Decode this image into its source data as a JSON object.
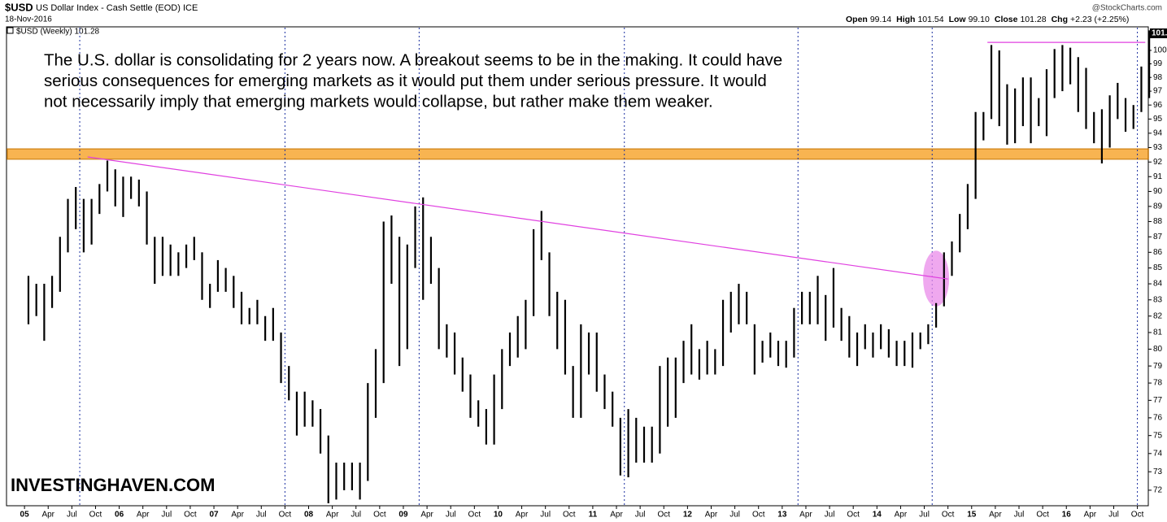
{
  "header": {
    "symbol": "$USD",
    "name": "US Dollar Index - Cash Settle (EOD) ICE",
    "date": "18-Nov-2016",
    "source": "@StockCharts.com",
    "quote": [
      {
        "label": "Open",
        "value": "99.14"
      },
      {
        "label": "High",
        "value": "101.54"
      },
      {
        "label": "Low",
        "value": "99.10"
      },
      {
        "label": "Close",
        "value": "101.28"
      },
      {
        "label": "Chg",
        "value": "+2.23 (+2.25%)"
      }
    ]
  },
  "chart_data": {
    "type": "hilo",
    "legend": "$USD (Weekly) 101.28",
    "last_price": 101.28,
    "color": "#000000",
    "annotation": [
      "The U.S. dollar is consolidating for 2 years now. A breakout seems to be in the making. It could have",
      "serious consequences for emerging markets as it would put them under serious pressure. It would",
      "not necessarily imply that emerging markets would collapse, but rather make them weaker."
    ],
    "watermark": "INVESTINGHAVEN.COM",
    "log": true,
    "xlim": [
      "2004-10",
      "2016-12"
    ],
    "ylim": [
      71.17,
      101.65
    ],
    "yticks": [
      72,
      73,
      74,
      75,
      76,
      77,
      78,
      79,
      80,
      81,
      82,
      83,
      84,
      85,
      86,
      87,
      88,
      89,
      90,
      91,
      92,
      93,
      94,
      95,
      96,
      97,
      98,
      99,
      100
    ],
    "xticks": [
      {
        "value": "2005-01",
        "label": "05"
      },
      {
        "value": "2005-04",
        "label": "Apr"
      },
      {
        "value": "2005-07",
        "label": "Jul"
      },
      {
        "value": "2005-10",
        "label": "Oct"
      },
      {
        "value": "2006-01",
        "label": "06"
      },
      {
        "value": "2006-04",
        "label": "Apr"
      },
      {
        "value": "2006-07",
        "label": "Jul"
      },
      {
        "value": "2006-10",
        "label": "Oct"
      },
      {
        "value": "2007-01",
        "label": "07"
      },
      {
        "value": "2007-04",
        "label": "Apr"
      },
      {
        "value": "2007-07",
        "label": "Jul"
      },
      {
        "value": "2007-10",
        "label": "Oct"
      },
      {
        "value": "2008-01",
        "label": "08"
      },
      {
        "value": "2008-04",
        "label": "Apr"
      },
      {
        "value": "2008-07",
        "label": "Jul"
      },
      {
        "value": "2008-10",
        "label": "Oct"
      },
      {
        "value": "2009-01",
        "label": "09"
      },
      {
        "value": "2009-04",
        "label": "Apr"
      },
      {
        "value": "2009-07",
        "label": "Jul"
      },
      {
        "value": "2009-10",
        "label": "Oct"
      },
      {
        "value": "2010-01",
        "label": "10"
      },
      {
        "value": "2010-04",
        "label": "Apr"
      },
      {
        "value": "2010-07",
        "label": "Jul"
      },
      {
        "value": "2010-10",
        "label": "Oct"
      },
      {
        "value": "2011-01",
        "label": "11"
      },
      {
        "value": "2011-04",
        "label": "Apr"
      },
      {
        "value": "2011-07",
        "label": "Jul"
      },
      {
        "value": "2011-10",
        "label": "Oct"
      },
      {
        "value": "2012-01",
        "label": "12"
      },
      {
        "value": "2012-04",
        "label": "Apr"
      },
      {
        "value": "2012-07",
        "label": "Jul"
      },
      {
        "value": "2012-10",
        "label": "Oct"
      },
      {
        "value": "2013-01",
        "label": "13"
      },
      {
        "value": "2013-04",
        "label": "Apr"
      },
      {
        "value": "2013-07",
        "label": "Jul"
      },
      {
        "value": "2013-10",
        "label": "Oct"
      },
      {
        "value": "2014-01",
        "label": "14"
      },
      {
        "value": "2014-04",
        "label": "Apr"
      },
      {
        "value": "2014-07",
        "label": "Jul"
      },
      {
        "value": "2014-10",
        "label": "Oct"
      },
      {
        "value": "2015-01",
        "label": "15"
      },
      {
        "value": "2015-04",
        "label": "Apr"
      },
      {
        "value": "2015-07",
        "label": "Jul"
      },
      {
        "value": "2015-10",
        "label": "Oct"
      },
      {
        "value": "2016-01",
        "label": "16"
      },
      {
        "value": "2016-04",
        "label": "Apr"
      },
      {
        "value": "2016-07",
        "label": "Jul"
      },
      {
        "value": "2016-10",
        "label": "Oct"
      }
    ],
    "x": [
      "2005-01",
      "2005-02",
      "2005-03",
      "2005-04",
      "2005-05",
      "2005-06",
      "2005-07",
      "2005-08",
      "2005-09",
      "2005-10",
      "2005-11",
      "2005-12",
      "2006-01",
      "2006-02",
      "2006-03",
      "2006-04",
      "2006-05",
      "2006-06",
      "2006-07",
      "2006-08",
      "2006-09",
      "2006-10",
      "2006-11",
      "2006-12",
      "2007-01",
      "2007-02",
      "2007-03",
      "2007-04",
      "2007-05",
      "2007-06",
      "2007-07",
      "2007-08",
      "2007-09",
      "2007-10",
      "2007-11",
      "2007-12",
      "2008-01",
      "2008-02",
      "2008-03",
      "2008-04",
      "2008-05",
      "2008-06",
      "2008-07",
      "2008-08",
      "2008-09",
      "2008-10",
      "2008-11",
      "2008-12",
      "2009-01",
      "2009-02",
      "2009-03",
      "2009-04",
      "2009-05",
      "2009-06",
      "2009-07",
      "2009-08",
      "2009-09",
      "2009-10",
      "2009-11",
      "2009-12",
      "2010-01",
      "2010-02",
      "2010-03",
      "2010-04",
      "2010-05",
      "2010-06",
      "2010-07",
      "2010-08",
      "2010-09",
      "2010-10",
      "2010-11",
      "2010-12",
      "2011-01",
      "2011-02",
      "2011-03",
      "2011-04",
      "2011-05",
      "2011-06",
      "2011-07",
      "2011-08",
      "2011-09",
      "2011-10",
      "2011-11",
      "2011-12",
      "2012-01",
      "2012-02",
      "2012-03",
      "2012-04",
      "2012-05",
      "2012-06",
      "2012-07",
      "2012-08",
      "2012-09",
      "2012-10",
      "2012-11",
      "2012-12",
      "2013-01",
      "2013-02",
      "2013-03",
      "2013-04",
      "2013-05",
      "2013-06",
      "2013-07",
      "2013-08",
      "2013-09",
      "2013-10",
      "2013-11",
      "2013-12",
      "2014-01",
      "2014-02",
      "2014-03",
      "2014-04",
      "2014-05",
      "2014-06",
      "2014-07",
      "2014-08",
      "2014-09",
      "2014-10",
      "2014-11",
      "2014-12",
      "2015-01",
      "2015-02",
      "2015-03",
      "2015-04",
      "2015-05",
      "2015-06",
      "2015-07",
      "2015-08",
      "2015-09",
      "2015-10",
      "2015-11",
      "2015-12",
      "2016-01",
      "2016-02",
      "2016-03",
      "2016-04",
      "2016-05",
      "2016-06",
      "2016-07",
      "2016-08",
      "2016-09",
      "2016-10",
      "2016-11"
    ],
    "high": [
      84.5,
      84,
      84,
      84.5,
      87,
      89.5,
      90.3,
      89.5,
      89.5,
      90.5,
      92.1,
      91.5,
      91,
      91,
      90.8,
      90,
      87,
      87,
      86.5,
      86,
      86.5,
      87,
      86,
      84,
      85.5,
      85,
      84.5,
      83.5,
      82.5,
      83,
      82,
      82.5,
      81,
      79,
      77.5,
      77.5,
      77,
      76.5,
      75,
      73.5,
      73.5,
      73.5,
      73.5,
      78,
      80,
      88,
      88.4,
      87,
      86.5,
      89,
      89.6,
      87,
      85,
      81.5,
      81,
      79.5,
      78.5,
      77,
      76.5,
      78.5,
      80,
      81,
      82,
      83,
      87.5,
      88.7,
      86,
      83.5,
      83,
      79,
      81.5,
      81,
      81,
      78.5,
      77.5,
      76,
      76.5,
      76,
      75.5,
      75.5,
      79,
      79.5,
      79.5,
      80.5,
      81.5,
      80,
      80.5,
      80,
      83,
      83.5,
      84,
      83.5,
      81.5,
      80.5,
      81,
      80.5,
      80.5,
      82.5,
      83.5,
      83.5,
      84.5,
      83.3,
      85,
      82.5,
      82,
      81,
      81.5,
      81,
      81.5,
      81.2,
      80.5,
      80.5,
      81,
      81,
      81.5,
      82.8,
      86,
      86.7,
      88.5,
      90.5,
      95.5,
      95.5,
      100.4,
      100,
      97.5,
      97.2,
      98,
      98,
      96.5,
      98.6,
      100.1,
      100.4,
      100.2,
      99.5,
      98.7,
      95.5,
      95.7,
      96.7,
      97.6,
      96.5,
      96,
      98.8,
      101.5
    ],
    "low": [
      81.5,
      82,
      80.5,
      82.5,
      83.5,
      86,
      87.5,
      86,
      86.5,
      88.5,
      90,
      89,
      88.3,
      89.5,
      89,
      86.5,
      84,
      84.5,
      84.5,
      84.5,
      85,
      85.5,
      83,
      82.5,
      83.5,
      83.5,
      82.5,
      81.5,
      81.5,
      81.5,
      80.5,
      80.5,
      78,
      77,
      75,
      75.5,
      75.5,
      74,
      71.3,
      71.5,
      72,
      72,
      71.5,
      72.5,
      76,
      78,
      84,
      79,
      80,
      85,
      83,
      84,
      80,
      79.5,
      78.5,
      77.5,
      76,
      75.5,
      74.5,
      74.5,
      76.5,
      79,
      79.5,
      80,
      82,
      85.5,
      82,
      80,
      78.5,
      76,
      76,
      78.5,
      77.5,
      76.5,
      75.5,
      72.8,
      72.7,
      73.5,
      73.5,
      73.5,
      74,
      75.5,
      76,
      78,
      78.5,
      78.2,
      78.5,
      78.5,
      79,
      81,
      81.5,
      81.5,
      78.5,
      79.2,
      79.5,
      79,
      78.9,
      79.5,
      81.5,
      81.5,
      81.5,
      80.5,
      81.3,
      80.5,
      79.5,
      79,
      80,
      79.5,
      80,
      79.5,
      79,
      79,
      78.9,
      80,
      80.3,
      81.3,
      82.6,
      84.5,
      86,
      87.5,
      89.5,
      93.5,
      95,
      94.5,
      93.2,
      93.3,
      94.5,
      93.3,
      94.5,
      93.8,
      96.5,
      97,
      97.5,
      95.5,
      94.3,
      93.3,
      91.9,
      93,
      95,
      94.1,
      94.3,
      95.5,
      96.5
    ],
    "band": {
      "ylim": [
        92.2,
        92.9
      ],
      "color": "#f7a833"
    },
    "trendline": {
      "x": [
        "2005-09",
        "2014-10"
      ],
      "y": [
        92.35,
        84.3
      ],
      "color": "#e040e0"
    },
    "resistance": {
      "x": [
        "2015-03",
        "2016-11"
      ],
      "y": 100.6,
      "color": "#e040e0"
    },
    "highlight": {
      "x": "2014-08",
      "ylim": [
        82.6,
        86.1
      ],
      "color": "#e98be9"
    },
    "vlines": [
      "2005-08",
      "2007-10",
      "2009-03",
      "2011-05",
      "2013-03",
      "2014-08",
      "2016-10"
    ]
  }
}
